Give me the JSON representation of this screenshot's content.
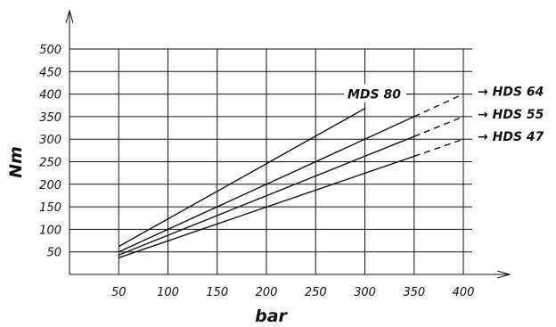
{
  "chart_data": {
    "type": "line",
    "xlabel": "bar",
    "ylabel": "Nm",
    "xlim": [
      0,
      400
    ],
    "ylim": [
      0,
      500
    ],
    "x_ticks": [
      50,
      100,
      150,
      200,
      250,
      300,
      350,
      400
    ],
    "y_ticks": [
      50,
      100,
      150,
      200,
      250,
      300,
      350,
      400,
      450,
      500
    ],
    "x_tick_labels": [
      "50",
      "100",
      "150",
      "200",
      "250",
      "300",
      "350",
      "400"
    ],
    "y_tick_labels": [
      "50",
      "100",
      "150",
      "200",
      "250",
      "300",
      "350",
      "400",
      "450",
      "500"
    ],
    "grid": true,
    "series": [
      {
        "name": "MDS 80",
        "label_text": "MDS 80",
        "label_arrow": false,
        "solid": [
          [
            50,
            62
          ],
          [
            300,
            368
          ]
        ],
        "dashed": []
      },
      {
        "name": "HDS 64",
        "label_text": "→ HDS 64",
        "label_arrow": true,
        "solid": [
          [
            50,
            50
          ],
          [
            350,
            350
          ]
        ],
        "dashed": [
          [
            350,
            350
          ],
          [
            400,
            400
          ]
        ]
      },
      {
        "name": "HDS 55",
        "label_text": "→ HDS 55",
        "label_arrow": true,
        "solid": [
          [
            50,
            43
          ],
          [
            350,
            306
          ]
        ],
        "dashed": [
          [
            350,
            306
          ],
          [
            400,
            350
          ]
        ]
      },
      {
        "name": "HDS 47",
        "label_text": "→ HDS 47",
        "label_arrow": true,
        "solid": [
          [
            50,
            37
          ],
          [
            350,
            262
          ]
        ],
        "dashed": [
          [
            350,
            262
          ],
          [
            400,
            300
          ]
        ]
      }
    ]
  }
}
